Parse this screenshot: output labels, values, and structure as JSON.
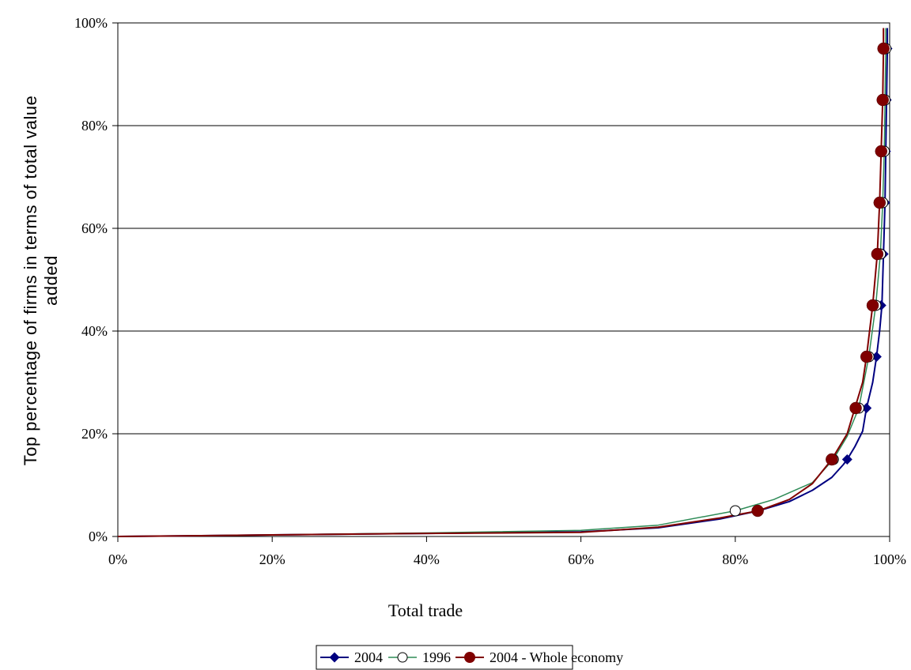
{
  "chart_data": {
    "type": "line",
    "title": "",
    "xlabel": "Total trade",
    "ylabel_lines": [
      "Top percentage of firms in terms of total value",
      "added"
    ],
    "xlim": [
      0,
      100
    ],
    "ylim": [
      0,
      100
    ],
    "x_ticks": [
      "0%",
      "20%",
      "40%",
      "60%",
      "80%",
      "100%"
    ],
    "y_ticks": [
      "0%",
      "20%",
      "40%",
      "60%",
      "80%",
      "100%"
    ],
    "grid": "horizontal",
    "legend_position": "bottom",
    "series": [
      {
        "name": "2004",
        "color": "#000080",
        "marker": "diamond",
        "curve": [
          [
            0,
            0
          ],
          [
            20,
            0.3
          ],
          [
            40,
            0.6
          ],
          [
            60,
            0.9
          ],
          [
            70,
            1.7
          ],
          [
            78,
            3.4
          ],
          [
            83,
            5
          ],
          [
            87,
            6.8
          ],
          [
            90,
            9
          ],
          [
            92.5,
            11.5
          ],
          [
            94,
            14
          ],
          [
            94.5,
            15
          ],
          [
            95.5,
            17.5
          ],
          [
            96.5,
            20.5
          ],
          [
            97,
            25
          ],
          [
            97.8,
            30
          ],
          [
            98.3,
            35
          ],
          [
            98.7,
            40
          ],
          [
            99,
            45
          ],
          [
            99.2,
            55
          ],
          [
            99.4,
            65
          ],
          [
            99.5,
            75
          ],
          [
            99.6,
            85
          ],
          [
            99.7,
            95
          ],
          [
            99.7,
            99
          ]
        ],
        "markers": [
          [
            94.5,
            15
          ],
          [
            97,
            25
          ],
          [
            98.3,
            35
          ],
          [
            98.9,
            45
          ],
          [
            99.2,
            55
          ],
          [
            99.4,
            65
          ],
          [
            99.5,
            75
          ],
          [
            99.6,
            85
          ],
          [
            99.7,
            95
          ]
        ]
      },
      {
        "name": "1996",
        "color": "#2E8B57",
        "marker": "circle-open",
        "curve": [
          [
            0,
            0
          ],
          [
            20,
            0.3
          ],
          [
            40,
            0.7
          ],
          [
            60,
            1.2
          ],
          [
            70,
            2.2
          ],
          [
            80,
            5
          ],
          [
            85,
            7.2
          ],
          [
            90,
            10.5
          ],
          [
            92.7,
            15
          ],
          [
            94.5,
            19.5
          ],
          [
            96,
            25
          ],
          [
            97.3,
            35
          ],
          [
            98.2,
            45
          ],
          [
            98.8,
            55
          ],
          [
            99.1,
            65
          ],
          [
            99.3,
            75
          ],
          [
            99.4,
            85
          ],
          [
            99.5,
            95
          ],
          [
            99.5,
            99
          ]
        ],
        "markers": [
          [
            80,
            5
          ],
          [
            92.7,
            15
          ],
          [
            96,
            25
          ],
          [
            97.3,
            35
          ],
          [
            98.2,
            45
          ],
          [
            98.8,
            55
          ],
          [
            99.1,
            65
          ],
          [
            99.3,
            75
          ],
          [
            99.4,
            85
          ],
          [
            99.5,
            95
          ]
        ]
      },
      {
        "name": "2004 - Whole economy",
        "color": "#800000",
        "marker": "circle-filled",
        "curve": [
          [
            0,
            0
          ],
          [
            20,
            0.3
          ],
          [
            40,
            0.6
          ],
          [
            60,
            0.8
          ],
          [
            70,
            1.8
          ],
          [
            78,
            3.6
          ],
          [
            83,
            5
          ],
          [
            87,
            7.2
          ],
          [
            90,
            10.3
          ],
          [
            92.5,
            15
          ],
          [
            94.5,
            20
          ],
          [
            95.5,
            25
          ],
          [
            96.5,
            30
          ],
          [
            97,
            35
          ],
          [
            97.8,
            45
          ],
          [
            98.4,
            55
          ],
          [
            98.7,
            65
          ],
          [
            98.9,
            75
          ],
          [
            99.1,
            85
          ],
          [
            99.2,
            95
          ],
          [
            99.2,
            99
          ]
        ],
        "markers": [
          [
            82.9,
            5
          ],
          [
            92.5,
            15
          ],
          [
            95.6,
            25
          ],
          [
            97,
            35
          ],
          [
            97.8,
            45
          ],
          [
            98.4,
            55
          ],
          [
            98.7,
            65
          ],
          [
            98.9,
            75
          ],
          [
            99.1,
            85
          ],
          [
            99.2,
            95
          ]
        ]
      }
    ]
  }
}
